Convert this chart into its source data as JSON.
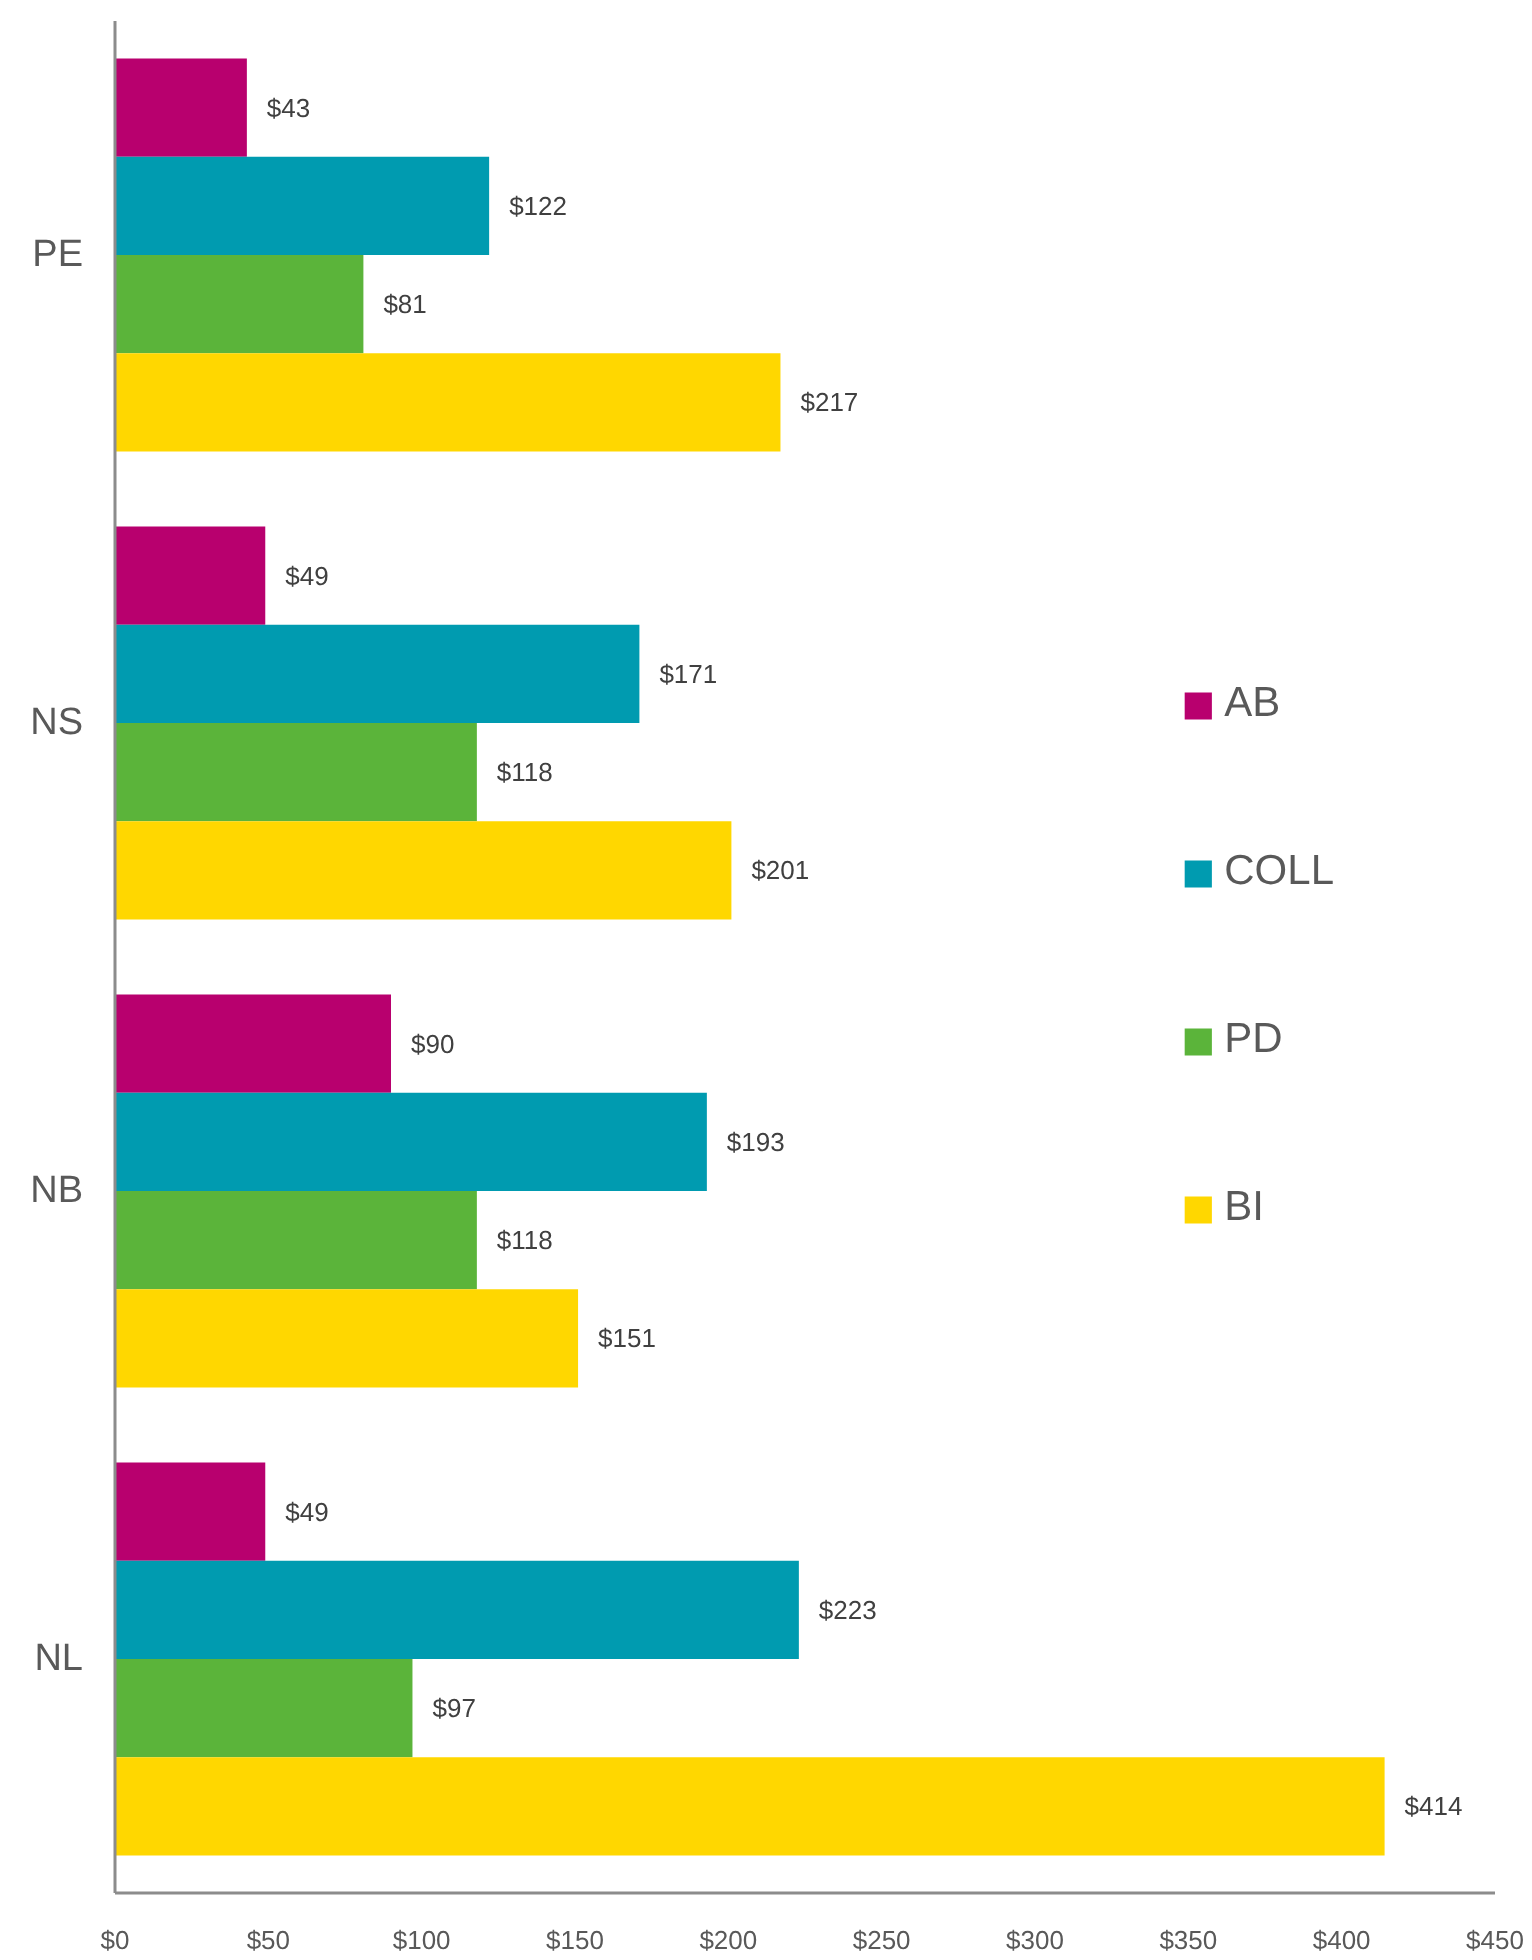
{
  "chart_data": {
    "type": "bar",
    "orientation": "horizontal",
    "categories": [
      "PE",
      "NS",
      "NB",
      "NL"
    ],
    "series": [
      {
        "name": "AB",
        "color": "#b8006e",
        "values": [
          43,
          49,
          90,
          49
        ],
        "value_labels": [
          "$43",
          "$49",
          "$90",
          "$49"
        ]
      },
      {
        "name": "COLL",
        "color": "#009bb0",
        "values": [
          122,
          171,
          193,
          223
        ],
        "value_labels": [
          "$122",
          "$171",
          "$193",
          "$223"
        ]
      },
      {
        "name": "PD",
        "color": "#5bb43a",
        "values": [
          81,
          118,
          118,
          97
        ],
        "value_labels": [
          "$81",
          "$118",
          "$118",
          "$97"
        ]
      },
      {
        "name": "BI",
        "color": "#ffd700",
        "values": [
          217,
          201,
          151,
          414
        ],
        "value_labels": [
          "$217",
          "$201",
          "$151",
          "$414"
        ]
      }
    ],
    "xlim": [
      0,
      450
    ],
    "xticks": [
      {
        "value": 0,
        "label": "$0"
      },
      {
        "value": 50,
        "label": "$50"
      },
      {
        "value": 100,
        "label": "$100"
      },
      {
        "value": 150,
        "label": "$150"
      },
      {
        "value": 200,
        "label": "$200"
      },
      {
        "value": 250,
        "label": "$250"
      },
      {
        "value": 300,
        "label": "$300"
      },
      {
        "value": 350,
        "label": "$350"
      },
      {
        "value": 400,
        "label": "$400"
      },
      {
        "value": 450,
        "label": "$450"
      }
    ],
    "grid": false,
    "legend": "right"
  }
}
